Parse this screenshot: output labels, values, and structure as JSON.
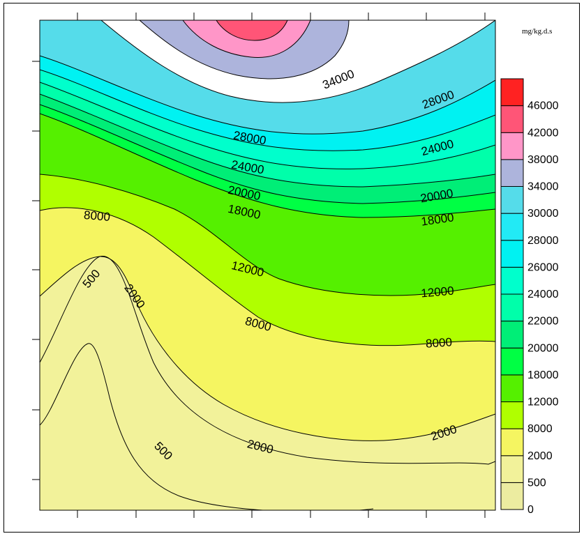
{
  "chart_data": {
    "type": "contour",
    "title": "",
    "unit_label": "mg/kg.d.s",
    "colorbar": {
      "levels": [
        0,
        500,
        2000,
        8000,
        12000,
        18000,
        20000,
        22000,
        24000,
        26000,
        28000,
        30000,
        34000,
        38000,
        42000,
        46000
      ],
      "colors": [
        "#ececa0",
        "#f2f29a",
        "#f5f561",
        "#b0ff00",
        "#55f000",
        "#00ff44",
        "#00ee77",
        "#00ffaa",
        "#00ffcc",
        "#00f2f2",
        "#22eaf5",
        "#55dcea",
        "#adb4dc",
        "#ff96c8",
        "#ff5577",
        "#ff2222"
      ],
      "labels": [
        "0",
        "500",
        "2000",
        "8000",
        "12000",
        "18000",
        "20000",
        "22000",
        "24000",
        "26000",
        "28000",
        "30000",
        "34000",
        "38000",
        "42000",
        "46000"
      ]
    },
    "contour_labels": [
      {
        "text": "34000"
      },
      {
        "text": "28000"
      },
      {
        "text": "28000"
      },
      {
        "text": "24000"
      },
      {
        "text": "24000"
      },
      {
        "text": "20000"
      },
      {
        "text": "20000"
      },
      {
        "text": "18000"
      },
      {
        "text": "18000"
      },
      {
        "text": "8000"
      },
      {
        "text": "12000"
      },
      {
        "text": "12000"
      },
      {
        "text": "8000"
      },
      {
        "text": "8000"
      },
      {
        "text": "500"
      },
      {
        "text": "2000"
      },
      {
        "text": "2000"
      },
      {
        "text": "2000"
      },
      {
        "text": "500"
      }
    ]
  }
}
